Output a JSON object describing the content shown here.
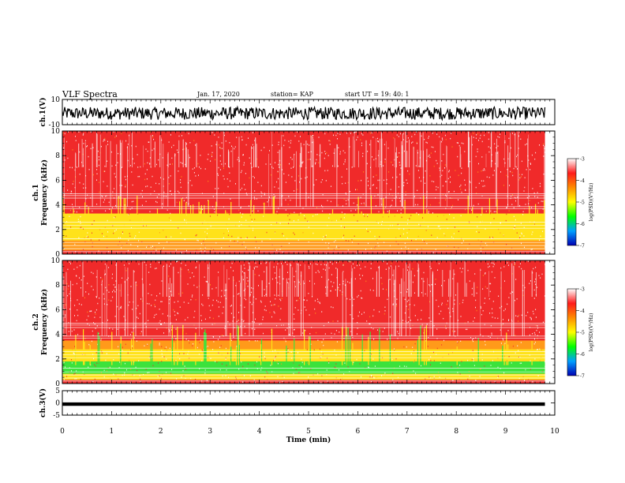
{
  "header": {
    "title": "VLF Spectra",
    "date": "Jan. 17, 2020",
    "station": "station= KAP",
    "start": "start  UT =   19: 40: 1"
  },
  "colors": {
    "band_red": "#f02a2a",
    "band_orange": "#ff9a1a",
    "band_yellow": "#ffe21a",
    "band_green": "#3ce23c",
    "trace": "#000000"
  },
  "colorbar": {
    "label": "log(PSD)(V²/Hz)",
    "ticks": [
      "-3",
      "-4",
      "-5",
      "-6",
      "-7"
    ],
    "stops": [
      "#ffffff",
      "#ff1a1a",
      "#ff8c00",
      "#ffff00",
      "#00ff00",
      "#00a0ff",
      "#0000b4"
    ]
  },
  "chart_data": [
    {
      "type": "line",
      "panel": "ch1-waveform",
      "ylabel": "ch.1(V)",
      "ylim": [
        -10,
        10
      ],
      "yticks": [
        "10",
        "-10"
      ],
      "xlim": [
        0,
        10
      ],
      "x_end": 9.8,
      "amplitude_band": [
        -6,
        4
      ]
    },
    {
      "type": "heatmap",
      "panel": "ch1-spectrogram",
      "ylabel": "ch.1\nFrequency (kHz)",
      "ylim": [
        0,
        10
      ],
      "yticks": [
        "0",
        "2",
        "4",
        "6",
        "8",
        "10"
      ],
      "xlim": [
        0,
        10
      ],
      "x_end": 9.8,
      "bands": [
        {
          "f0": 0.3,
          "f1": 1.1,
          "color": "orange"
        },
        {
          "f0": 1.1,
          "f1": 3.3,
          "color": "yellow"
        },
        {
          "f0": 3.3,
          "f1": 10.0,
          "color": "red"
        }
      ]
    },
    {
      "type": "heatmap",
      "panel": "ch2-spectrogram",
      "ylabel": "ch.2\nFrequency (kHz)",
      "ylim": [
        0,
        10
      ],
      "yticks": [
        "0",
        "2",
        "4",
        "6",
        "8",
        "10"
      ],
      "xlim": [
        0,
        10
      ],
      "x_end": 9.8,
      "bands": [
        {
          "f0": 0.3,
          "f1": 0.8,
          "color": "yellow"
        },
        {
          "f0": 0.8,
          "f1": 1.8,
          "color": "green"
        },
        {
          "f0": 1.8,
          "f1": 2.8,
          "color": "yellow"
        },
        {
          "f0": 2.8,
          "f1": 3.5,
          "color": "orange"
        },
        {
          "f0": 3.5,
          "f1": 10.0,
          "color": "red"
        }
      ]
    },
    {
      "type": "line",
      "panel": "ch3-waveform",
      "ylabel": "ch.3(V)",
      "ylim": [
        -5,
        5
      ],
      "yticks": [
        "5",
        "0",
        "-5"
      ],
      "xlim": [
        0,
        10
      ],
      "x_end": 9.8,
      "amplitude_band": [
        -1.2,
        0.2
      ]
    }
  ],
  "xaxis": {
    "label": "Time (min)",
    "ticks": [
      "0",
      "1",
      "2",
      "3",
      "4",
      "5",
      "6",
      "7",
      "8",
      "9",
      "10"
    ]
  }
}
